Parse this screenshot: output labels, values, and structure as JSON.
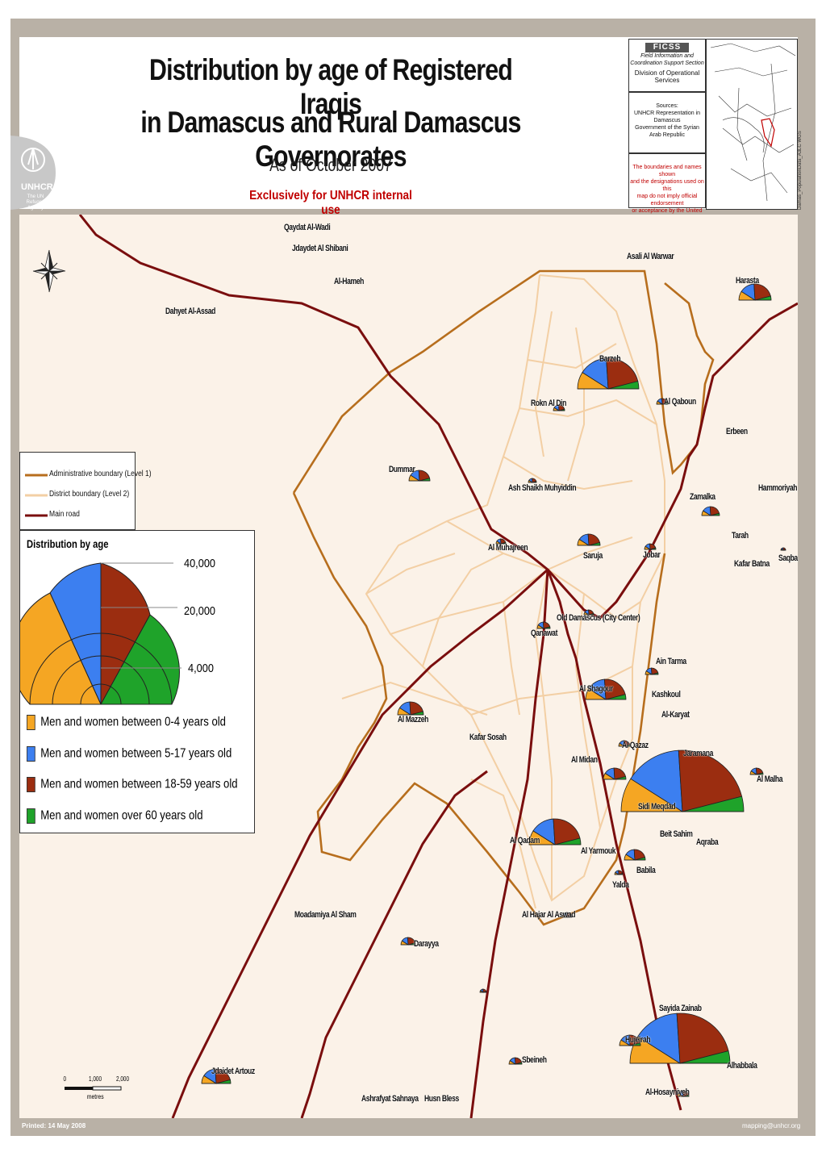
{
  "header": {
    "title_line1": "Distribution by age of Registered Iraqis",
    "title_line2": "in Damascus and Rural Damascus Governorates",
    "subtitle": "As of October 2007",
    "exclusive": "Exclusively for UNHCR internal use",
    "logo_text": "UNHCR",
    "logo_sub": "The UN Refugee Agency"
  },
  "fics": {
    "acronym": "FICSS",
    "line1": "Field Information and",
    "line2": "Coordination Support Section",
    "line3": "Division of Operational Services"
  },
  "sources": {
    "label": "Sources:",
    "line1": "UNHCR Representation in Damascus",
    "line2": "Government of the Syrian Arab Republic"
  },
  "disclaimer": {
    "line1": "The boundaries and names shown",
    "line2": "and the designations used on this",
    "line3": "map do not imply official endorsement",
    "line4": "or acceptance by the United Nations."
  },
  "side_text": "Damas_PopulationData_A3LC WGS",
  "legend_lines": {
    "admin": "Administrative boundary (Level 1)",
    "district": "District boundary (Level 2)",
    "road": "Main road"
  },
  "legend_age": {
    "title": "Distribution by age",
    "values": [
      "40,000",
      "20,000",
      "4,000"
    ],
    "items": [
      {
        "label": "Men and women between 0-4 years old",
        "color": "#f5a623"
      },
      {
        "label": "Men and women between 5-17 years old",
        "color": "#3c7ff0"
      },
      {
        "label": "Men and women between 18-59 years old",
        "color": "#9b2d10"
      },
      {
        "label": "Men and women over 60 years old",
        "color": "#1fa32a"
      }
    ]
  },
  "places": [
    "Qaydat Al-Wadi",
    "Jdaydet Al Shibani",
    "Al-Hameh",
    "Dahyet Al-Assad",
    "Asali Al Warwar",
    "Harasta",
    "Barzeh",
    "Rokn Al Din",
    "Al Qaboun",
    "Erbeen",
    "Dummar",
    "Ash Shaikh Muhyiddin",
    "Zamalka",
    "Hammoriyah",
    "Al Muhajreen",
    "Saruja",
    "Jobar",
    "Tarah",
    "Kafar Batna",
    "Saqba",
    "Old Damascus (City Center)",
    "Qanawat",
    "Ain Tarma",
    "Al Shagour",
    "Kashkoul",
    "Al Mazzeh",
    "Al-Karyat",
    "Kafar Sosah",
    "Al Qazaz",
    "Jaramana",
    "Al Midan",
    "Al Malha",
    "Sidi Meqdad",
    "Beit Sahim",
    "Al Qadam",
    "Al Yarmouk",
    "Aqraba",
    "Babila",
    "Yalda",
    "Moadamiya Al Sham",
    "Al Hajar Al Aswad",
    "Darayya",
    "Sayida Zainab",
    "Hujeirah",
    "Jdaidet Artouz",
    "Sbeineh",
    "Alhabbala",
    "Ashrafyat Sahnaya",
    "Husn Bless",
    "Al-Hosayniyeh"
  ],
  "scale": {
    "ticks": [
      "0",
      "1,000",
      "2,000"
    ],
    "unit": "metres"
  },
  "footer": {
    "printed": "Printed: 14 May 2008",
    "email": "mapping@unhcr.org"
  }
}
